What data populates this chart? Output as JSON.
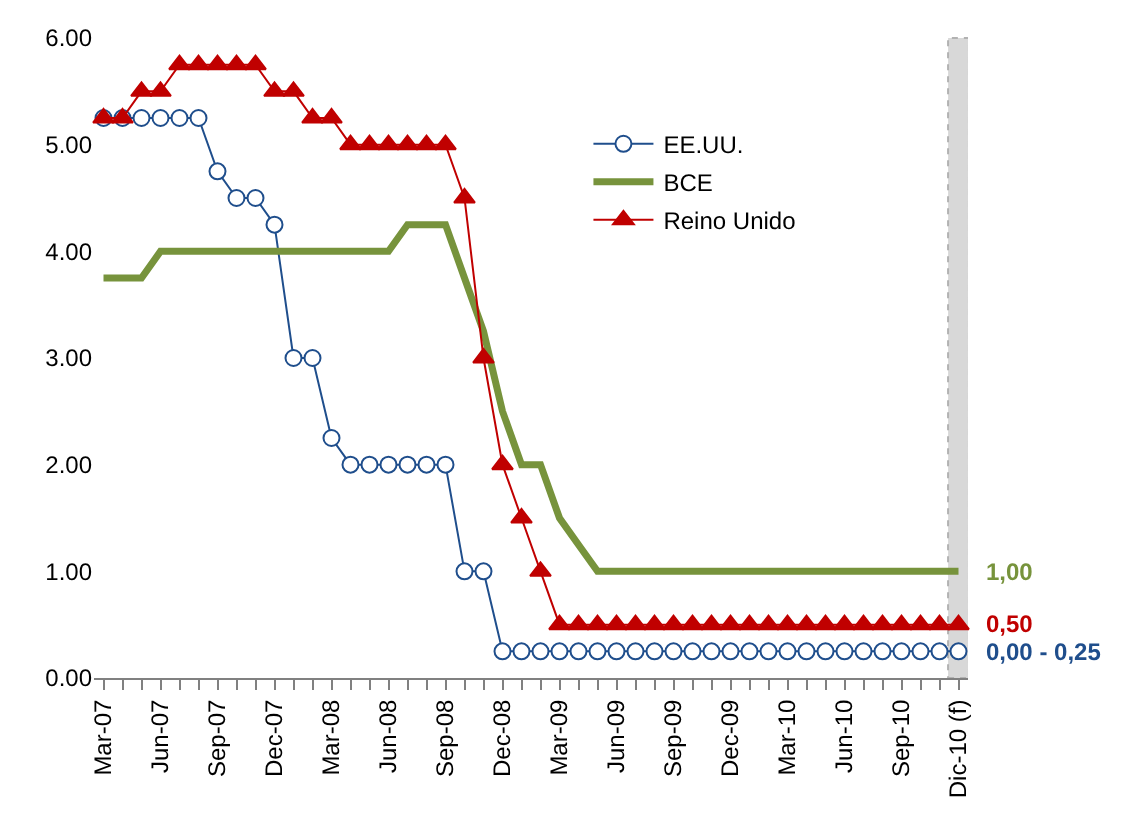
{
  "chart_data": {
    "type": "line",
    "categories": [
      "Mar-07",
      null,
      null,
      "Jun-07",
      null,
      null,
      "Sep-07",
      null,
      null,
      "Dec-07",
      null,
      null,
      "Mar-08",
      null,
      null,
      "Jun-08",
      null,
      null,
      "Sep-08",
      null,
      null,
      "Dec-08",
      null,
      null,
      "Mar-09",
      null,
      null,
      "Jun-09",
      null,
      null,
      "Sep-09",
      null,
      null,
      "Dec-09",
      null,
      null,
      "Mar-10",
      null,
      null,
      "Jun-10",
      null,
      null,
      "Sep-10",
      null,
      null,
      "Dic-10 (f)"
    ],
    "series": [
      {
        "name": "EE.UU.",
        "color": "#1f4e8c",
        "marker": "circle",
        "values": [
          5.25,
          5.25,
          5.25,
          5.25,
          5.25,
          5.25,
          4.75,
          4.5,
          4.5,
          4.25,
          3.0,
          3.0,
          2.25,
          2.0,
          2.0,
          2.0,
          2.0,
          2.0,
          2.0,
          1.0,
          1.0,
          0.25,
          0.25,
          0.25,
          0.25,
          0.25,
          0.25,
          0.25,
          0.25,
          0.25,
          0.25,
          0.25,
          0.25,
          0.25,
          0.25,
          0.25,
          0.25,
          0.25,
          0.25,
          0.25,
          0.25,
          0.25,
          0.25,
          0.25,
          0.25,
          0.25
        ]
      },
      {
        "name": "BCE",
        "color": "#77933c",
        "marker": "none",
        "values": [
          3.75,
          3.75,
          3.75,
          4.0,
          4.0,
          4.0,
          4.0,
          4.0,
          4.0,
          4.0,
          4.0,
          4.0,
          4.0,
          4.0,
          4.0,
          4.0,
          4.25,
          4.25,
          4.25,
          3.75,
          3.25,
          2.5,
          2.0,
          2.0,
          1.5,
          1.25,
          1.0,
          1.0,
          1.0,
          1.0,
          1.0,
          1.0,
          1.0,
          1.0,
          1.0,
          1.0,
          1.0,
          1.0,
          1.0,
          1.0,
          1.0,
          1.0,
          1.0,
          1.0,
          1.0,
          1.0
        ]
      },
      {
        "name": "Reino Unido",
        "color": "#c00000",
        "marker": "triangle",
        "values": [
          5.25,
          5.25,
          5.5,
          5.5,
          5.75,
          5.75,
          5.75,
          5.75,
          5.75,
          5.5,
          5.5,
          5.25,
          5.25,
          5.0,
          5.0,
          5.0,
          5.0,
          5.0,
          5.0,
          4.5,
          3.0,
          2.0,
          1.5,
          1.0,
          0.5,
          0.5,
          0.5,
          0.5,
          0.5,
          0.5,
          0.5,
          0.5,
          0.5,
          0.5,
          0.5,
          0.5,
          0.5,
          0.5,
          0.5,
          0.5,
          0.5,
          0.5,
          0.5,
          0.5,
          0.5,
          0.5
        ]
      }
    ],
    "ylim": [
      0,
      6
    ],
    "yticks": [
      {
        "value": 0,
        "label": "0.00"
      },
      {
        "value": 1,
        "label": "1.00"
      },
      {
        "value": 2,
        "label": "2.00"
      },
      {
        "value": 3,
        "label": "3.00"
      },
      {
        "value": 4,
        "label": "4.00"
      },
      {
        "value": 5,
        "label": "5.00"
      },
      {
        "value": 6,
        "label": "6.00"
      }
    ],
    "annotations": [
      {
        "text": "0,00 - 0,25",
        "x": "Dic-10 (f)",
        "y": 0.25
      },
      {
        "text": "1,00",
        "x": "Dic-10 (f)",
        "y": 1.0
      },
      {
        "text": "0,50",
        "x": "Dic-10 (f)",
        "y": 0.5
      }
    ],
    "bands": [
      {
        "axis": "x",
        "from": "Dic-10 (f)",
        "to": "Dic-10 (f)",
        "color": "#bfbfbf"
      }
    ],
    "grid": false,
    "legend": "top right"
  }
}
